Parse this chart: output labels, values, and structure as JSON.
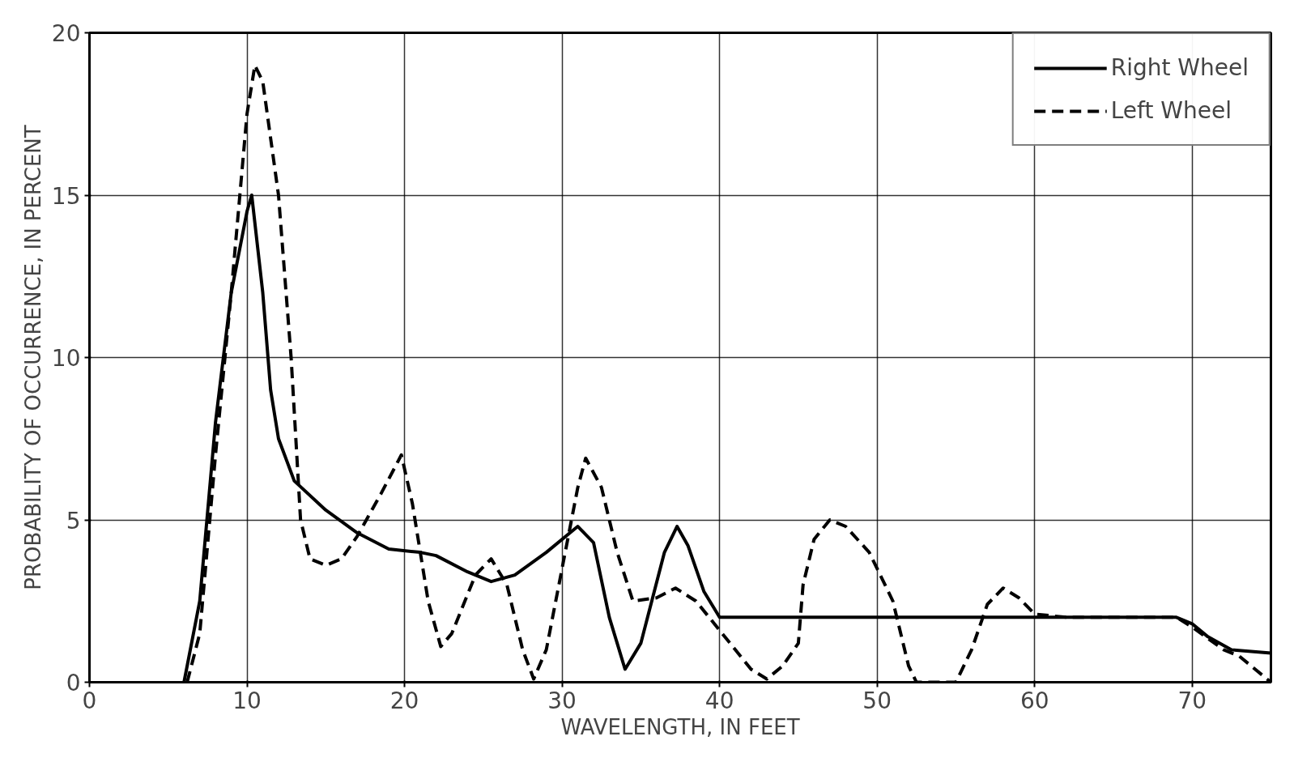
{
  "chart_data": {
    "type": "line",
    "xlabel": "WAVELENGTH, IN FEET",
    "ylabel": "PROBABILITY OF OCCURRENCE, IN PERCENT",
    "xlim": [
      0,
      75
    ],
    "ylim": [
      0,
      20
    ],
    "xticks": [
      0,
      10,
      20,
      30,
      40,
      50,
      60,
      70
    ],
    "yticks": [
      0,
      5,
      10,
      15,
      20
    ],
    "grid": true,
    "legend": "top right",
    "series": [
      {
        "name": "Right Wheel",
        "color": "#000000",
        "line_style": "solid",
        "x": [
          6,
          7,
          8,
          9,
          10,
          10.3,
          11,
          11.5,
          12,
          13,
          15,
          17,
          19,
          21,
          22,
          24,
          25.5,
          27,
          29,
          31,
          32,
          33,
          34,
          35,
          36.5,
          37.3,
          38,
          39,
          40,
          69,
          70,
          71,
          72.5,
          75
        ],
        "values": [
          0,
          2.5,
          8,
          12,
          14.5,
          15,
          12,
          9,
          7.5,
          6.2,
          5.3,
          4.6,
          4.1,
          4.0,
          3.9,
          3.4,
          3.1,
          3.3,
          4.0,
          4.8,
          4.3,
          2,
          0.4,
          1.2,
          4,
          4.8,
          4.2,
          2.8,
          2.0,
          2.0,
          1.8,
          1.4,
          1.0,
          0.9
        ]
      },
      {
        "name": "Left Wheel",
        "color": "#000000",
        "line_style": "dashed",
        "x": [
          6.2,
          7,
          8,
          9,
          10,
          10.5,
          11,
          12,
          12.8,
          13.4,
          14,
          15,
          16,
          17,
          18.5,
          19.8,
          20.5,
          21.5,
          22.3,
          23,
          24.5,
          25.5,
          26.5,
          27.5,
          28.2,
          29,
          30,
          31,
          31.5,
          32.5,
          33.5,
          34.5,
          36,
          37.2,
          38.5,
          40,
          42,
          43,
          44,
          45,
          45.3,
          46,
          47,
          48,
          49.5,
          51,
          52,
          52.5,
          55,
          56,
          57,
          58,
          59,
          60,
          62,
          69,
          70,
          72,
          73,
          75
        ],
        "values": [
          0,
          1.5,
          7,
          12,
          17.5,
          19,
          18.5,
          15,
          10,
          5,
          3.8,
          3.6,
          3.8,
          4.5,
          5.8,
          7,
          5.5,
          2.5,
          1.1,
          1.5,
          3.3,
          3.8,
          3,
          1,
          0.1,
          1,
          3.5,
          6,
          6.9,
          6,
          4,
          2.5,
          2.6,
          2.9,
          2.5,
          1.6,
          0.4,
          0.1,
          0.5,
          1.2,
          3,
          4.4,
          5.0,
          4.8,
          4,
          2.5,
          0.5,
          0,
          0,
          1,
          2.4,
          2.9,
          2.6,
          2.1,
          2,
          2,
          1.7,
          1.0,
          0.8,
          0
        ]
      }
    ]
  }
}
